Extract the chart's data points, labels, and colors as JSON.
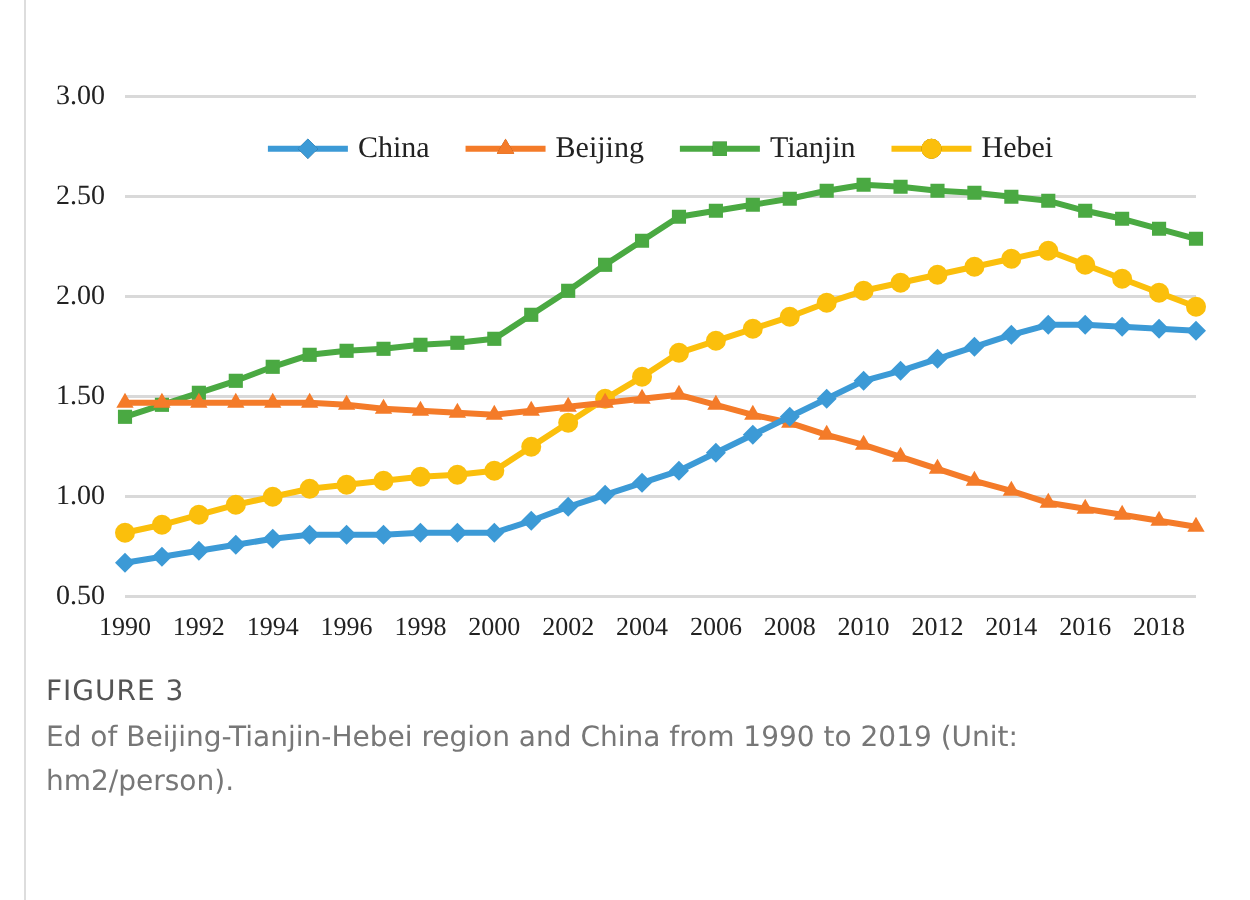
{
  "chart_data": {
    "type": "line",
    "title": "FIGURE 3",
    "subtitle": "Ed of Beijing-Tianjin-Hebei region and China from 1990 to 2019 (Unit: hm2/person).",
    "categories": [
      "1990",
      null,
      "1992",
      null,
      "1994",
      null,
      "1996",
      null,
      "1998",
      null,
      "2000",
      null,
      "2002",
      null,
      "2004",
      null,
      "2006",
      null,
      "2008",
      null,
      "2010",
      null,
      "2012",
      null,
      "2014",
      null,
      "2016",
      null,
      "2018",
      null
    ],
    "ylim": [
      0.5,
      3
    ],
    "yticks": [
      {
        "value": 0.5,
        "label": "0.50"
      },
      {
        "value": 1,
        "label": "1.00"
      },
      {
        "value": 1.5,
        "label": "1.50"
      },
      {
        "value": 2,
        "label": "2.00"
      },
      {
        "value": 2.5,
        "label": "2.50"
      },
      {
        "value": 3,
        "label": "3.00"
      }
    ],
    "grid": "y",
    "legend": "top",
    "line_style": "solid",
    "series": [
      {
        "name": "China",
        "color": "#3c9ad6",
        "marker": "diamond",
        "values": [
          0.67,
          0.7,
          0.73,
          0.76,
          0.79,
          0.81,
          0.81,
          0.81,
          0.82,
          0.82,
          0.82,
          0.88,
          0.95,
          1.01,
          1.07,
          1.13,
          1.22,
          1.31,
          1.4,
          1.49,
          1.58,
          1.63,
          1.69,
          1.75,
          1.81,
          1.86,
          1.86,
          1.85,
          1.84,
          1.83
        ]
      },
      {
        "name": "Beijing",
        "color": "#f47b29",
        "marker": "triangle",
        "values": [
          1.47,
          1.47,
          1.47,
          1.47,
          1.47,
          1.47,
          1.46,
          1.44,
          1.43,
          1.42,
          1.41,
          1.43,
          1.45,
          1.47,
          1.49,
          1.51,
          1.46,
          1.41,
          1.37,
          1.31,
          1.26,
          1.2,
          1.14,
          1.08,
          1.03,
          0.97,
          0.94,
          0.91,
          0.88,
          0.85
        ]
      },
      {
        "name": "Tianjin",
        "color": "#4aa942",
        "marker": "square",
        "values": [
          1.4,
          1.46,
          1.52,
          1.58,
          1.65,
          1.71,
          1.73,
          1.74,
          1.76,
          1.77,
          1.79,
          1.91,
          2.03,
          2.16,
          2.28,
          2.4,
          2.43,
          2.46,
          2.49,
          2.53,
          2.56,
          2.55,
          2.53,
          2.52,
          2.5,
          2.48,
          2.43,
          2.39,
          2.34,
          2.29
        ]
      },
      {
        "name": "Hebei",
        "color": "#fbbf0c",
        "marker": "circle",
        "values": [
          0.82,
          0.86,
          0.91,
          0.96,
          1.0,
          1.04,
          1.06,
          1.08,
          1.1,
          1.11,
          1.13,
          1.25,
          1.37,
          1.49,
          1.6,
          1.72,
          1.78,
          1.84,
          1.9,
          1.97,
          2.03,
          2.07,
          2.11,
          2.15,
          2.19,
          2.23,
          2.16,
          2.09,
          2.02,
          1.95
        ]
      }
    ]
  }
}
